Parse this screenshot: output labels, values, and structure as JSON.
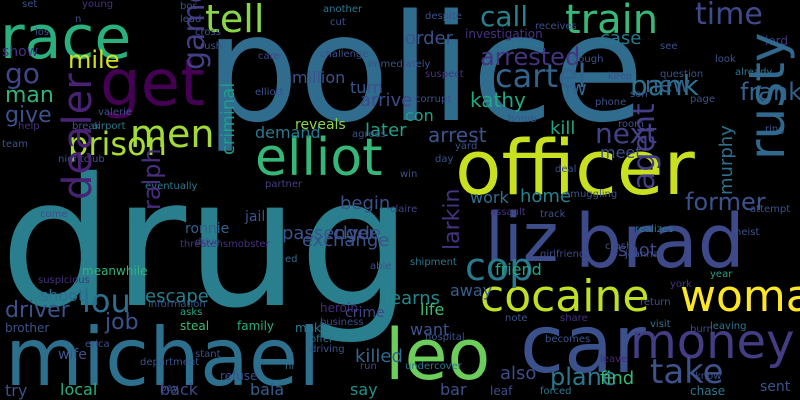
{
  "background": "#000000",
  "words": [
    {
      "text": "drug",
      "color": "#2a7f8e"
    },
    {
      "text": "police",
      "color": "#2f6c8e"
    },
    {
      "text": "michael",
      "color": "#2d708e"
    },
    {
      "text": "officer",
      "color": "#c8e020"
    },
    {
      "text": "car",
      "color": "#3b518b"
    },
    {
      "text": "brad",
      "color": "#3e4989"
    },
    {
      "text": "leo",
      "color": "#6ccd5a"
    },
    {
      "text": "money",
      "color": "#433d84"
    },
    {
      "text": "cocaine",
      "color": "#c2df23"
    },
    {
      "text": "race",
      "color": "#2ab07f"
    },
    {
      "text": "get",
      "color": "#440154"
    },
    {
      "text": "elliot",
      "color": "#35b779"
    },
    {
      "text": "liz",
      "color": "#3d4d8a"
    },
    {
      "text": "rusty",
      "color": "#31688e"
    },
    {
      "text": "take",
      "color": "#3b528b"
    },
    {
      "text": "woman",
      "color": "#fde725"
    },
    {
      "text": "tell",
      "color": "#8bd646"
    },
    {
      "text": "dealer",
      "color": "#482374"
    },
    {
      "text": "train",
      "color": "#37b878"
    },
    {
      "text": "time",
      "color": "#3e4a89"
    },
    {
      "text": "cartel",
      "color": "#33638d"
    },
    {
      "text": "prison",
      "color": "#a8db34"
    },
    {
      "text": "men",
      "color": "#a2da37"
    },
    {
      "text": "game",
      "color": "#433e85"
    },
    {
      "text": "go",
      "color": "#404588"
    },
    {
      "text": "cop",
      "color": "#2a788e"
    },
    {
      "text": "agent",
      "color": "#433e85"
    },
    {
      "text": "lou",
      "color": "#2e6e8e"
    },
    {
      "text": "next",
      "color": "#424186"
    },
    {
      "text": "call",
      "color": "#26828e"
    },
    {
      "text": "mile",
      "color": "#d2e21b"
    },
    {
      "text": "bank",
      "color": "#2c738e"
    },
    {
      "text": "arrested",
      "color": "#46327e"
    },
    {
      "text": "man",
      "color": "#2fb47c"
    },
    {
      "text": "give",
      "color": "#3c508b"
    },
    {
      "text": "frank",
      "color": "#34618d"
    },
    {
      "text": "new",
      "color": "#33628d"
    },
    {
      "text": "arrest",
      "color": "#3a548c"
    },
    {
      "text": "kill",
      "color": "#21a685"
    },
    {
      "text": "kathy",
      "color": "#22a884"
    },
    {
      "text": "jw",
      "color": "#33638d"
    },
    {
      "text": "murphy",
      "color": "#2c718e"
    },
    {
      "text": "criminal",
      "color": "#1f9e89"
    },
    {
      "text": "ralph",
      "color": "#472e7c"
    },
    {
      "text": "driver",
      "color": "#3b528b"
    },
    {
      "text": "job",
      "color": "#3b528b"
    },
    {
      "text": "escape",
      "color": "#277f8e"
    },
    {
      "text": "shoot",
      "color": "#2e6e8e"
    },
    {
      "text": "killed",
      "color": "#31688e"
    },
    {
      "text": "friend",
      "color": "#22a785"
    },
    {
      "text": "learns",
      "color": "#24878e"
    },
    {
      "text": "later",
      "color": "#1fa188"
    },
    {
      "text": "case",
      "color": "#2a788e"
    },
    {
      "text": "order",
      "color": "#3b528b"
    },
    {
      "text": "larkin",
      "color": "#46337f"
    },
    {
      "text": "arrive",
      "color": "#3f4889"
    },
    {
      "text": "con",
      "color": "#1fa188"
    },
    {
      "text": "work",
      "color": "#2d708e"
    },
    {
      "text": "home",
      "color": "#26828e"
    },
    {
      "text": "meet",
      "color": "#3d4e8a"
    },
    {
      "text": "shot",
      "color": "#3f4788"
    },
    {
      "text": "plane",
      "color": "#2a788e"
    },
    {
      "text": "find",
      "color": "#35b779"
    },
    {
      "text": "want",
      "color": "#3a548c"
    },
    {
      "text": "life",
      "color": "#3fbc73"
    },
    {
      "text": "away",
      "color": "#35608d"
    },
    {
      "text": "also",
      "color": "#3e4c8a"
    },
    {
      "text": "back",
      "color": "#3f4788"
    },
    {
      "text": "local",
      "color": "#29af7f"
    },
    {
      "text": "bala",
      "color": "#34608d"
    },
    {
      "text": "say",
      "color": "#21918c"
    },
    {
      "text": "bar",
      "color": "#3b528b"
    },
    {
      "text": "try",
      "color": "#3b528b"
    },
    {
      "text": "demand",
      "color": "#2a788e"
    },
    {
      "text": "reveals",
      "color": "#8bd646"
    },
    {
      "text": "meanwhile",
      "color": "#2fb47c"
    },
    {
      "text": "ronnie",
      "color": "#34618d"
    },
    {
      "text": "steal",
      "color": "#3fbc73"
    },
    {
      "text": "family",
      "color": "#26ad81"
    },
    {
      "text": "make",
      "color": "#2a788e"
    },
    {
      "text": "refuse",
      "color": "#3e4a89"
    },
    {
      "text": "asks",
      "color": "#22a884"
    },
    {
      "text": "heroin",
      "color": "#472c7a"
    },
    {
      "text": "business",
      "color": "#3e4a89"
    },
    {
      "text": "offer",
      "color": "#2c738e"
    },
    {
      "text": "driving",
      "color": "#3b528b"
    },
    {
      "text": "ed",
      "color": "#2f6c8e"
    },
    {
      "text": "hi",
      "color": "#2e6e8e"
    },
    {
      "text": "run",
      "color": "#3f4788"
    },
    {
      "text": "leaf",
      "color": "#3e4c8a"
    },
    {
      "text": "crime",
      "color": "#404688"
    },
    {
      "text": "drive",
      "color": "#3f4889"
    },
    {
      "text": "partner",
      "color": "#423f85"
    },
    {
      "text": "sent",
      "color": "#3b528b"
    },
    {
      "text": "becomes",
      "color": "#39568c"
    },
    {
      "text": "leave",
      "color": "#482677"
    },
    {
      "text": "visit",
      "color": "#2b748e"
    },
    {
      "text": "burn",
      "color": "#3e4989"
    },
    {
      "text": "leaving",
      "color": "#2a788e"
    },
    {
      "text": "share",
      "color": "#46337f"
    },
    {
      "text": "note",
      "color": "#39568c"
    },
    {
      "text": "chase",
      "color": "#2a788e"
    },
    {
      "text": "know",
      "color": "#3b528b"
    },
    {
      "text": "forced",
      "color": "#2a788e"
    },
    {
      "text": "girlfriend",
      "color": "#3e4a89"
    },
    {
      "text": "track",
      "color": "#3b528b"
    },
    {
      "text": "realizes",
      "color": "#2a788e"
    },
    {
      "text": "york",
      "color": "#46337f"
    },
    {
      "text": "year",
      "color": "#1fa188"
    },
    {
      "text": "heist",
      "color": "#3b528b"
    },
    {
      "text": "attempt",
      "color": "#3b528b"
    },
    {
      "text": "assault",
      "color": "#46337f"
    },
    {
      "text": "claire",
      "color": "#404588"
    },
    {
      "text": "shipment",
      "color": "#2a788e"
    },
    {
      "text": "undercover",
      "color": "#2a788e"
    },
    {
      "text": "department",
      "color": "#3b528b"
    },
    {
      "text": "pay",
      "color": "#3b528b"
    },
    {
      "text": "brother",
      "color": "#3b528b"
    },
    {
      "text": "suspicious",
      "color": "#46337f"
    },
    {
      "text": "eventually",
      "color": "#2a788e"
    },
    {
      "text": "nightclub",
      "color": "#3b528b"
    },
    {
      "text": "help",
      "color": "#46337f"
    },
    {
      "text": "break",
      "color": "#3b528b"
    },
    {
      "text": "airport",
      "color": "#2a788e"
    },
    {
      "text": "valerie",
      "color": "#3b528b"
    },
    {
      "text": "elliott",
      "color": "#3b528b"
    },
    {
      "text": "care",
      "color": "#404588"
    },
    {
      "text": "rush",
      "color": "#3b528b"
    },
    {
      "text": "cross",
      "color": "#3b528b"
    },
    {
      "text": "lead",
      "color": "#3b528b"
    },
    {
      "text": "set",
      "color": "#3b528b"
    },
    {
      "text": "young",
      "color": "#46337f"
    },
    {
      "text": "bos",
      "color": "#3b528b"
    },
    {
      "text": "n",
      "color": "#3b528b"
    },
    {
      "text": "los",
      "color": "#3b528b"
    },
    {
      "text": "show",
      "color": "#46337f"
    },
    {
      "text": "challenge",
      "color": "#3b528b"
    },
    {
      "text": "another",
      "color": "#2a788e"
    },
    {
      "text": "cut",
      "color": "#3b528b"
    },
    {
      "text": "investigation",
      "color": "#46337f"
    },
    {
      "text": "angeles",
      "color": "#2a788e"
    },
    {
      "text": "despite",
      "color": "#3b528b"
    },
    {
      "text": "immediately",
      "color": "#3b528b"
    },
    {
      "text": "suspect",
      "color": "#46337f"
    },
    {
      "text": "corrupt",
      "color": "#3b528b"
    },
    {
      "text": "receives",
      "color": "#3b528b"
    },
    {
      "text": "though",
      "color": "#3b528b"
    },
    {
      "text": "see",
      "color": "#3b528b"
    },
    {
      "text": "look",
      "color": "#3b528b"
    },
    {
      "text": "lord",
      "color": "#46337f"
    },
    {
      "text": "already",
      "color": "#2a788e"
    },
    {
      "text": "keep",
      "color": "#3b528b"
    },
    {
      "text": "son",
      "color": "#3b528b"
    },
    {
      "text": "question",
      "color": "#3b528b"
    },
    {
      "text": "phone",
      "color": "#3b528b"
    },
    {
      "text": "page",
      "color": "#3b528b"
    },
    {
      "text": "room",
      "color": "#3b528b"
    },
    {
      "text": "bomb",
      "color": "#3b528b"
    },
    {
      "text": "former",
      "color": "#3b528b"
    },
    {
      "text": "ring",
      "color": "#3b528b"
    },
    {
      "text": "information",
      "color": "#3b528b"
    },
    {
      "text": "threatensmobster",
      "color": "#46337f"
    },
    {
      "text": "stant",
      "color": "#3b528b"
    },
    {
      "text": "able",
      "color": "#3b528b"
    },
    {
      "text": "yard",
      "color": "#3b528b"
    },
    {
      "text": "deal",
      "color": "#3b528b"
    },
    {
      "text": "smuggling",
      "color": "#3b528b"
    },
    {
      "text": "win",
      "color": "#3b528b"
    },
    {
      "text": "day",
      "color": "#3b528b"
    },
    {
      "text": "agrees",
      "color": "#3b528b"
    },
    {
      "text": "team",
      "color": "#3b528b"
    },
    {
      "text": "come",
      "color": "#3b528b"
    },
    {
      "text": "erica",
      "color": "#3b528b"
    },
    {
      "text": "wife",
      "color": "#3b528b"
    },
    {
      "text": "clyde",
      "color": "#3b528b"
    },
    {
      "text": "begin",
      "color": "#3b528b"
    },
    {
      "text": "passenger",
      "color": "#3b528b"
    },
    {
      "text": "exchange",
      "color": "#3b528b"
    },
    {
      "text": "million",
      "color": "#3b528b"
    },
    {
      "text": "turn",
      "color": "#3b528b"
    },
    {
      "text": "jail",
      "color": "#3b528b"
    },
    {
      "text": "return",
      "color": "#3b528b"
    },
    {
      "text": "joanna",
      "color": "#3b528b"
    },
    {
      "text": "crash",
      "color": "#3b528b"
    },
    {
      "text": "hospital",
      "color": "#3b528b"
    },
    {
      "text": "six",
      "color": "#3b528b"
    },
    {
      "text": "named",
      "color": "#3b528b"
    },
    {
      "text": "buy",
      "color": "#3b528b"
    },
    {
      "text": "x",
      "color": "#3b528b"
    },
    {
      "text": "together",
      "color": "#3b528b"
    },
    {
      "text": "gangster",
      "color": "#3b528b"
    },
    {
      "text": "gene",
      "color": "#3b528b"
    },
    {
      "text": "warren",
      "color": "#3b528b"
    },
    {
      "text": "convinces",
      "color": "#3b528b"
    }
  ]
}
